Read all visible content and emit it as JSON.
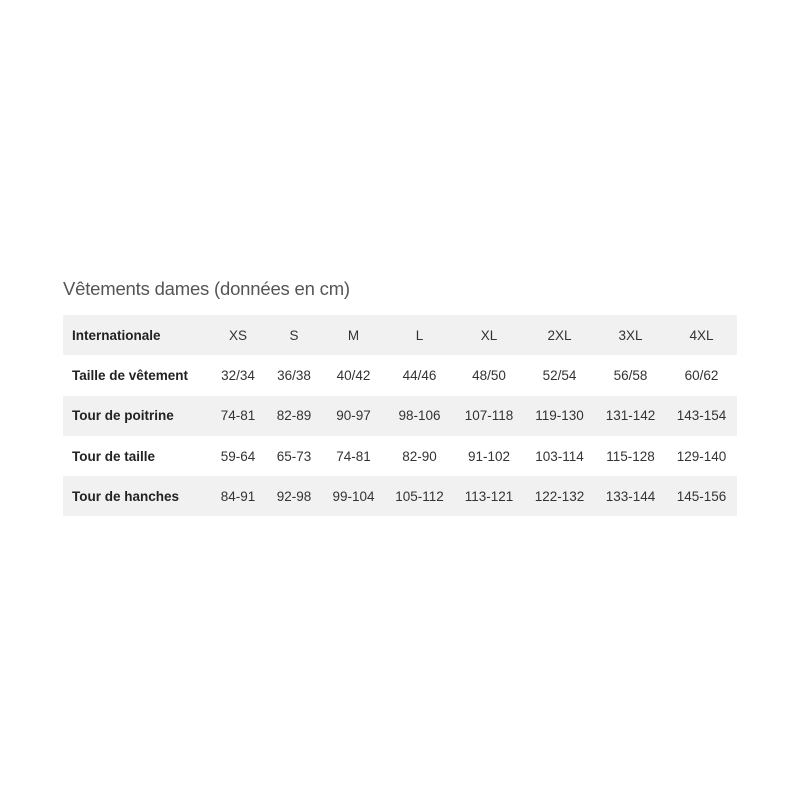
{
  "title": "Vêtements dames (données en cm)",
  "table": {
    "rows": [
      {
        "label": "Internationale",
        "cells": [
          "XS",
          "S",
          "M",
          "L",
          "XL",
          "2XL",
          "3XL",
          "4XL"
        ]
      },
      {
        "label": "Taille de vêtement",
        "cells": [
          "32/34",
          "36/38",
          "40/42",
          "44/46",
          "48/50",
          "52/54",
          "56/58",
          "60/62"
        ]
      },
      {
        "label": "Tour de poitrine",
        "cells": [
          "74-81",
          "82-89",
          "90-97",
          "98-106",
          "107-118",
          "119-130",
          "131-142",
          "143-154"
        ]
      },
      {
        "label": "Tour de taille",
        "cells": [
          "59-64",
          "65-73",
          "74-81",
          "82-90",
          "91-102",
          "103-114",
          "115-128",
          "129-140"
        ]
      },
      {
        "label": "Tour de hanches",
        "cells": [
          "84-91",
          "92-98",
          "99-104",
          "105-112",
          "113-121",
          "122-132",
          "133-144",
          "145-156"
        ]
      }
    ]
  },
  "colors": {
    "shade": "#f1f1f1",
    "text": "#222222",
    "title": "#555555"
  }
}
